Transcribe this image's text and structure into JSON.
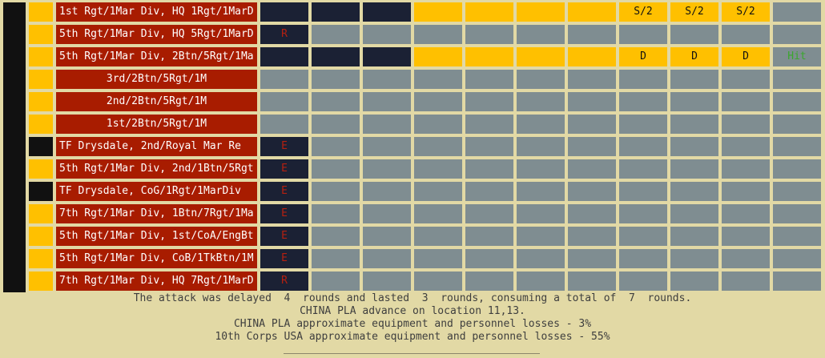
{
  "colors": {
    "background": "#e2d9a5",
    "unit_red": "#a81c00",
    "gold": "#ffc000",
    "navy": "#1b2134",
    "grey": "#7f8d91",
    "black": "#111111"
  },
  "units": [
    {
      "name": "1st Rgt/1Mar Div, HQ 1Rgt/1MarD",
      "marker": "gold",
      "c1": "navy",
      "c1_text": "",
      "c2": "navy",
      "c3": "navy",
      "rest": [
        "gold",
        "gold",
        "gold",
        "gold",
        "gold",
        "gold",
        "gold",
        "grey"
      ],
      "rest_text": [
        "",
        "",
        "",
        "",
        "S/2",
        "S/2",
        "S/2",
        ""
      ]
    },
    {
      "name": "5th Rgt/1Mar Div, HQ 5Rgt/1MarD",
      "marker": "gold",
      "c1": "navy",
      "c1_text": "R",
      "c2": "grey",
      "c3": "grey",
      "rest": [
        "grey",
        "grey",
        "grey",
        "grey",
        "grey",
        "grey",
        "grey",
        "grey"
      ],
      "rest_text": [
        "",
        "",
        "",
        "",
        "",
        "",
        "",
        ""
      ]
    },
    {
      "name": "5th Rgt/1Mar Div, 2Btn/5Rgt/1Ma",
      "marker": "gold",
      "c1": "navy",
      "c1_text": "",
      "c2": "navy",
      "c3": "navy",
      "rest": [
        "gold",
        "gold",
        "gold",
        "gold",
        "gold",
        "gold",
        "gold",
        "grey"
      ],
      "rest_text": [
        "",
        "",
        "",
        "",
        "D",
        "D",
        "D",
        "Hit"
      ]
    },
    {
      "name": "3rd/2Btn/5Rgt/1M",
      "marker": "gold",
      "c1": "grey",
      "c1_text": "",
      "c2": "grey",
      "c3": "grey",
      "rest": [
        "grey",
        "grey",
        "grey",
        "grey",
        "grey",
        "grey",
        "grey",
        "grey"
      ],
      "rest_text": [
        "",
        "",
        "",
        "",
        "",
        "",
        "",
        ""
      ]
    },
    {
      "name": "2nd/2Btn/5Rgt/1M",
      "marker": "gold",
      "c1": "grey",
      "c1_text": "",
      "c2": "grey",
      "c3": "grey",
      "rest": [
        "grey",
        "grey",
        "grey",
        "grey",
        "grey",
        "grey",
        "grey",
        "grey"
      ],
      "rest_text": [
        "",
        "",
        "",
        "",
        "",
        "",
        "",
        ""
      ]
    },
    {
      "name": "1st/2Btn/5Rgt/1M",
      "marker": "gold",
      "c1": "grey",
      "c1_text": "",
      "c2": "grey",
      "c3": "grey",
      "rest": [
        "grey",
        "grey",
        "grey",
        "grey",
        "grey",
        "grey",
        "grey",
        "grey"
      ],
      "rest_text": [
        "",
        "",
        "",
        "",
        "",
        "",
        "",
        ""
      ]
    },
    {
      "name": "TF Drysdale, 2nd/Royal Mar Re",
      "marker": "black",
      "c1": "navy",
      "c1_text": "E",
      "c2": "grey",
      "c3": "grey",
      "rest": [
        "grey",
        "grey",
        "grey",
        "grey",
        "grey",
        "grey",
        "grey",
        "grey"
      ],
      "rest_text": [
        "",
        "",
        "",
        "",
        "",
        "",
        "",
        ""
      ]
    },
    {
      "name": "5th Rgt/1Mar Div, 2nd/1Btn/5Rgt",
      "marker": "gold",
      "c1": "navy",
      "c1_text": "E",
      "c2": "grey",
      "c3": "grey",
      "rest": [
        "grey",
        "grey",
        "grey",
        "grey",
        "grey",
        "grey",
        "grey",
        "grey"
      ],
      "rest_text": [
        "",
        "",
        "",
        "",
        "",
        "",
        "",
        ""
      ]
    },
    {
      "name": "TF Drysdale, CoG/1Rgt/1MarDiv",
      "marker": "black",
      "c1": "navy",
      "c1_text": "E",
      "c2": "grey",
      "c3": "grey",
      "rest": [
        "grey",
        "grey",
        "grey",
        "grey",
        "grey",
        "grey",
        "grey",
        "grey"
      ],
      "rest_text": [
        "",
        "",
        "",
        "",
        "",
        "",
        "",
        ""
      ]
    },
    {
      "name": "7th Rgt/1Mar Div, 1Btn/7Rgt/1Ma",
      "marker": "gold",
      "c1": "navy",
      "c1_text": "E",
      "c2": "grey",
      "c3": "grey",
      "rest": [
        "grey",
        "grey",
        "grey",
        "grey",
        "grey",
        "grey",
        "grey",
        "grey"
      ],
      "rest_text": [
        "",
        "",
        "",
        "",
        "",
        "",
        "",
        ""
      ]
    },
    {
      "name": "5th Rgt/1Mar Div, 1st/CoA/EngBt",
      "marker": "gold",
      "c1": "navy",
      "c1_text": "E",
      "c2": "grey",
      "c3": "grey",
      "rest": [
        "grey",
        "grey",
        "grey",
        "grey",
        "grey",
        "grey",
        "grey",
        "grey"
      ],
      "rest_text": [
        "",
        "",
        "",
        "",
        "",
        "",
        "",
        ""
      ]
    },
    {
      "name": "5th Rgt/1Mar Div, CoB/1TkBtn/1M",
      "marker": "gold",
      "c1": "navy",
      "c1_text": "E",
      "c2": "grey",
      "c3": "grey",
      "rest": [
        "grey",
        "grey",
        "grey",
        "grey",
        "grey",
        "grey",
        "grey",
        "grey"
      ],
      "rest_text": [
        "",
        "",
        "",
        "",
        "",
        "",
        "",
        ""
      ]
    },
    {
      "name": "7th Rgt/1Mar Div, HQ 7Rgt/1MarD",
      "marker": "gold",
      "c1": "navy",
      "c1_text": "R",
      "c2": "grey",
      "c3": "grey",
      "rest": [
        "grey",
        "grey",
        "grey",
        "grey",
        "grey",
        "grey",
        "grey",
        "grey"
      ],
      "rest_text": [
        "",
        "",
        "",
        "",
        "",
        "",
        "",
        ""
      ]
    }
  ],
  "messages": {
    "line1": "The attack was delayed  4  rounds and lasted  3  rounds, consuming a total of  7  rounds.",
    "line2": "CHINA PLA advance on location 11,13.",
    "line3": "CHINA PLA approximate equipment and personnel losses - 3%",
    "line4": "10th Corps USA approximate equipment and personnel losses - 55%"
  }
}
